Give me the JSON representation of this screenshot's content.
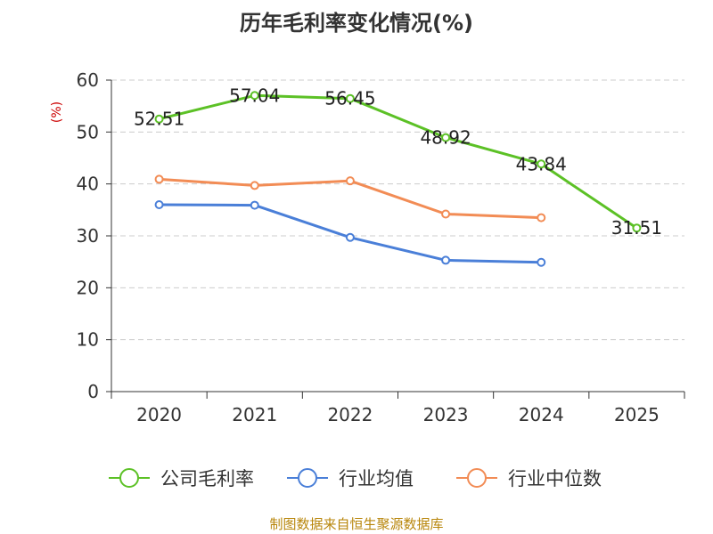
{
  "chart_data": {
    "type": "line",
    "title": "历年毛利率变化情况(%)",
    "ylabel": "(%)",
    "xlabel": "",
    "categories": [
      "2020",
      "2021",
      "2022",
      "2023",
      "2024",
      "2025"
    ],
    "ylim": [
      0,
      60
    ],
    "yticks": [
      0,
      10,
      20,
      30,
      40,
      50,
      60
    ],
    "grid": true,
    "legend_position": "bottom",
    "series": [
      {
        "name": "公司毛利率",
        "color": "#5cc126",
        "values": [
          52.51,
          57.04,
          56.45,
          48.92,
          43.84,
          31.51
        ],
        "labels": [
          "52.51",
          "57.04",
          "56.45",
          "48.92",
          "43.84",
          "31.51"
        ]
      },
      {
        "name": "行业均值",
        "color": "#4a7fd8",
        "values": [
          36.0,
          35.9,
          29.7,
          25.3,
          24.9,
          null
        ]
      },
      {
        "name": "行业中位数",
        "color": "#f28c55",
        "values": [
          40.9,
          39.7,
          40.6,
          34.2,
          33.5,
          null
        ]
      }
    ]
  },
  "source": "制图数据来自恒生聚源数据库"
}
